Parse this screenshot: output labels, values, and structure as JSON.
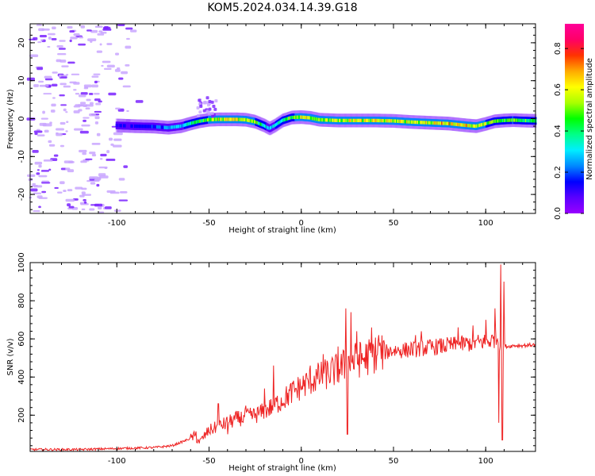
{
  "figure": {
    "title": "KOM5.2024.034.14.39.G18"
  },
  "chart_data": [
    {
      "type": "heatmap",
      "title": "KOM5.2024.034.14.39.G18",
      "xlabel": "Height of straight line (km)",
      "ylabel": "Frequency (Hz)",
      "xlim": [
        -147,
        127
      ],
      "ylim": [
        -25,
        25
      ],
      "xticks": [
        -100,
        -50,
        0,
        50,
        100
      ],
      "yticks": [
        -20,
        -10,
        0,
        10,
        20
      ],
      "grid": false,
      "colorbar": {
        "label": "Normalized spectral amplitude",
        "range": [
          0,
          0.92
        ],
        "ticks": [
          0.0,
          0.2,
          0.4,
          0.6,
          0.8
        ],
        "colormap": [
          "#9900ff",
          "#5a00ff",
          "#0000ff",
          "#0088ff",
          "#00eeff",
          "#00ff88",
          "#00ff00",
          "#aaff00",
          "#ffff00",
          "#ffaa00",
          "#ff3300",
          "#ff0066",
          "#ff0099"
        ]
      },
      "ridge": {
        "x": [
          -100,
          -90,
          -80,
          -72,
          -65,
          -60,
          -55,
          -50,
          -45,
          -40,
          -35,
          -30,
          -25,
          -20,
          -17,
          -14,
          -10,
          -5,
          0,
          5,
          10,
          20,
          30,
          40,
          50,
          60,
          70,
          80,
          90,
          95,
          100,
          105,
          110,
          115,
          120,
          127
        ],
        "y": [
          -1.8,
          -2.0,
          -2.1,
          -2.4,
          -2.0,
          -1.3,
          -0.7,
          -0.3,
          -0.2,
          -0.2,
          -0.2,
          -0.3,
          -0.8,
          -1.8,
          -2.6,
          -1.8,
          -0.5,
          0.3,
          0.4,
          0.2,
          -0.3,
          -0.5,
          -0.5,
          -0.5,
          -0.6,
          -0.9,
          -1.1,
          -1.3,
          -1.8,
          -2.0,
          -1.4,
          -0.7,
          -0.5,
          -0.4,
          -0.5,
          -0.6
        ],
        "amplitude": [
          0.12,
          0.15,
          0.18,
          0.25,
          0.3,
          0.38,
          0.45,
          0.55,
          0.6,
          0.62,
          0.6,
          0.58,
          0.55,
          0.35,
          0.3,
          0.32,
          0.4,
          0.5,
          0.62,
          0.6,
          0.58,
          0.55,
          0.6,
          0.62,
          0.58,
          0.6,
          0.62,
          0.65,
          0.66,
          0.62,
          0.55,
          0.5,
          0.45,
          0.55,
          0.5,
          0.45
        ]
      },
      "noise_region_x": [
        -147,
        -85
      ],
      "noise_amplitude": [
        0.05,
        0.2
      ]
    },
    {
      "type": "line",
      "xlabel": "Height of straight line (km)",
      "ylabel": "SNR (v/v)",
      "xlim": [
        -147,
        127
      ],
      "ylim": [
        10,
        1000
      ],
      "xticks": [
        -100,
        -50,
        0,
        50,
        100
      ],
      "yticks": [
        200,
        400,
        600,
        800,
        1000
      ],
      "grid": false,
      "series": [
        {
          "color": "#ee2222",
          "x": [
            -147,
            -120,
            -100,
            -80,
            -70,
            -62,
            -58,
            -55,
            -50,
            -45,
            -40,
            -35,
            -30,
            -25,
            -20,
            -15,
            -10,
            -5,
            0,
            5,
            10,
            15,
            20,
            25,
            30,
            35,
            40,
            45,
            50,
            55,
            60,
            65,
            70,
            75,
            80,
            85,
            90,
            95,
            100,
            103,
            105,
            107,
            108,
            109,
            110,
            112,
            115,
            120,
            127
          ],
          "y": [
            20,
            20,
            25,
            30,
            40,
            70,
            90,
            60,
            120,
            140,
            160,
            180,
            190,
            200,
            220,
            250,
            280,
            320,
            350,
            380,
            400,
            420,
            440,
            470,
            490,
            500,
            520,
            530,
            540,
            540,
            545,
            550,
            555,
            560,
            565,
            570,
            575,
            580,
            585,
            590,
            600,
            600,
            560,
            570,
            565,
            560,
            565,
            565,
            570
          ],
          "spikes": [
            {
              "x": -57,
              "y": 115
            },
            {
              "x": -45,
              "y": 260
            },
            {
              "x": -30,
              "y": 250
            },
            {
              "x": -20,
              "y": 340
            },
            {
              "x": -15,
              "y": 460
            },
            {
              "x": 5,
              "y": 460
            },
            {
              "x": 12,
              "y": 520
            },
            {
              "x": 20,
              "y": 560
            },
            {
              "x": 24,
              "y": 760
            },
            {
              "x": 27,
              "y": 740
            },
            {
              "x": 30,
              "y": 640
            },
            {
              "x": 38,
              "y": 660
            },
            {
              "x": 42,
              "y": 620
            },
            {
              "x": 62,
              "y": 620
            },
            {
              "x": 65,
              "y": 640
            },
            {
              "x": 85,
              "y": 660
            },
            {
              "x": 93,
              "y": 670
            },
            {
              "x": 100,
              "y": 700
            },
            {
              "x": 105,
              "y": 760
            },
            {
              "x": 108,
              "y": 990
            },
            {
              "x": 109,
              "y": 70
            },
            {
              "x": 107,
              "y": 160
            },
            {
              "x": 110,
              "y": 900
            },
            {
              "x": 25,
              "y": 100
            },
            {
              "x": -40,
              "y": 100
            }
          ]
        }
      ]
    }
  ]
}
